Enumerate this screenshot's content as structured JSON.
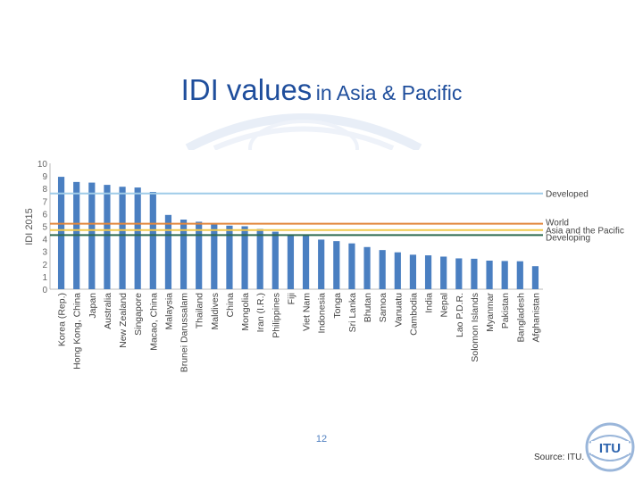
{
  "slide": {
    "title_main": "IDI values",
    "title_rest": "in Asia & Pacific",
    "page_number": "12",
    "source": "Source: ITU.",
    "logo_text": "ITU",
    "accent": "#1f4e9c"
  },
  "chart_data": {
    "type": "bar",
    "ylabel": "IDI 2015",
    "ylim": [
      0,
      10
    ],
    "yticks": [
      "0",
      "1",
      "2",
      "3",
      "4",
      "5",
      "6",
      "7",
      "8",
      "9",
      "10"
    ],
    "categories": [
      "Korea (Rep.)",
      "Hong Kong, China",
      "Japan",
      "Australia",
      "New Zealand",
      "Singapore",
      "Macao, China",
      "Malaysia",
      "Brunei Darussalam",
      "Thailand",
      "Maldives",
      "China",
      "Mongolia",
      "Iran (I.R.)",
      "Philippines",
      "Fiji",
      "Viet Nam",
      "Indonesia",
      "Tonga",
      "Sri Lanka",
      "Bhutan",
      "Samoa",
      "Vanuatu",
      "Cambodia",
      "India",
      "Nepal",
      "Lao P.D.R.",
      "Solomon Islands",
      "Myanmar",
      "Pakistan",
      "Bangladesh",
      "Afghanistan"
    ],
    "values": [
      8.93,
      8.52,
      8.47,
      8.29,
      8.14,
      8.08,
      7.73,
      5.9,
      5.53,
      5.36,
      5.25,
      5.05,
      5.0,
      4.79,
      4.57,
      4.33,
      4.28,
      3.94,
      3.82,
      3.64,
      3.35,
      3.11,
      2.93,
      2.74,
      2.69,
      2.59,
      2.45,
      2.42,
      2.27,
      2.24,
      2.22,
      1.83
    ],
    "bar_color": "#4a7fc1",
    "reference_lines": [
      {
        "name": "Developed",
        "value": 7.61,
        "color": "#9fcbe8"
      },
      {
        "name": "World",
        "value": 5.2,
        "color": "#e2873c"
      },
      {
        "name": "Asia and the Pacific",
        "value": 4.7,
        "color": "#f2c94c"
      },
      {
        "name": "Developing",
        "value": 4.3,
        "color": "#2e6a4f"
      }
    ],
    "grid": false
  }
}
